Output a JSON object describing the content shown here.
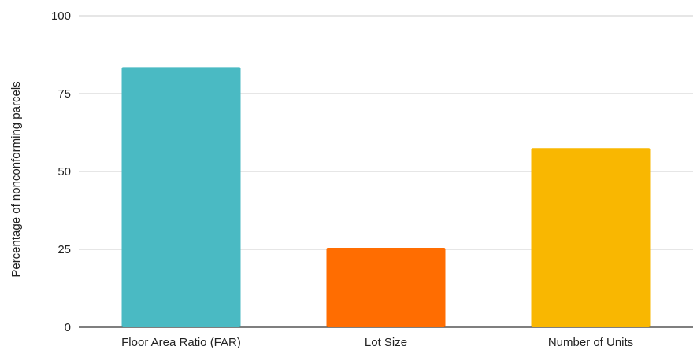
{
  "chart_data": {
    "type": "bar",
    "title": "",
    "xlabel": "",
    "ylabel": "Percentage of nonconforming parcels",
    "ylim": [
      0,
      100
    ],
    "yticks": [
      0,
      25,
      50,
      75,
      100
    ],
    "grid": true,
    "legend": "none",
    "categories": [
      "Floor Area Ratio (FAR)",
      "Lot Size",
      "Number of Units"
    ],
    "values": [
      83.5,
      25.5,
      57.5
    ],
    "colors": [
      "#4ABAC3",
      "#FF6D01",
      "#F9B701"
    ]
  }
}
